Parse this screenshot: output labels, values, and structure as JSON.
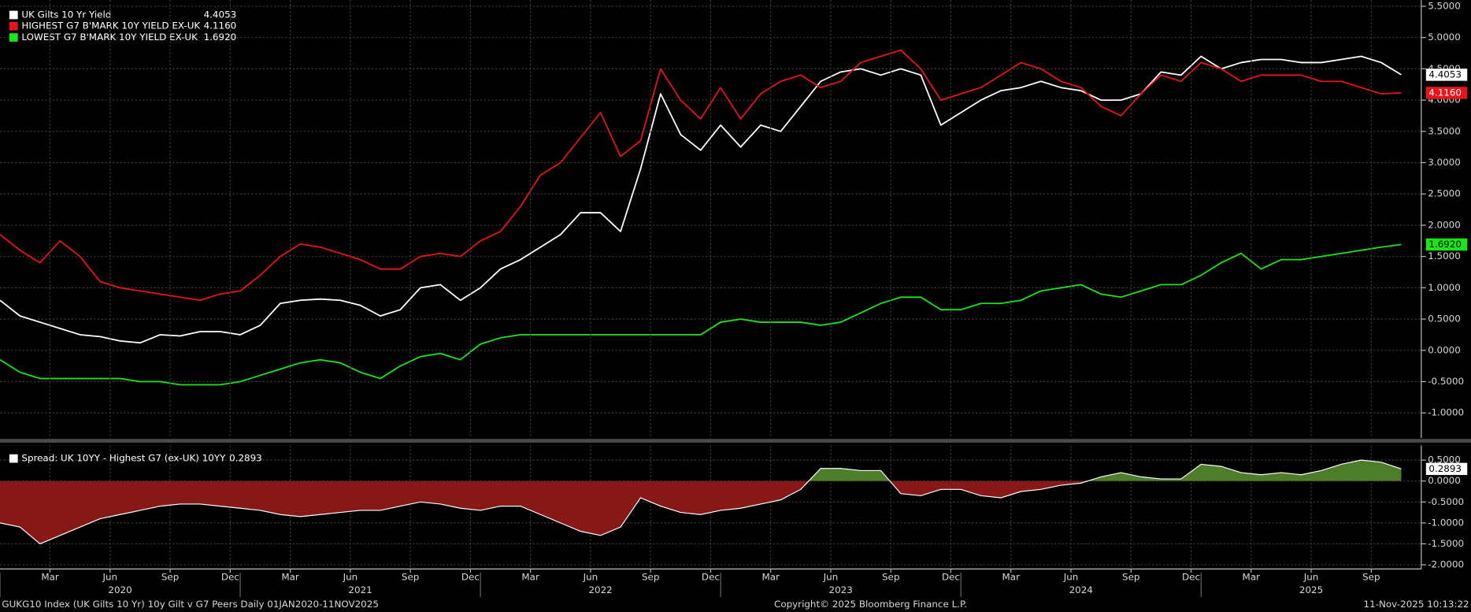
{
  "chart_data": [
    {
      "type": "line",
      "x": [
        "2020-01",
        "2020-02",
        "2020-03",
        "2020-04",
        "2020-05",
        "2020-06",
        "2020-07",
        "2020-08",
        "2020-09",
        "2020-10",
        "2020-11",
        "2020-12",
        "2021-01",
        "2021-02",
        "2021-03",
        "2021-04",
        "2021-05",
        "2021-06",
        "2021-07",
        "2021-08",
        "2021-09",
        "2021-10",
        "2021-11",
        "2021-12",
        "2022-01",
        "2022-02",
        "2022-03",
        "2022-04",
        "2022-05",
        "2022-06",
        "2022-07",
        "2022-08",
        "2022-09",
        "2022-10",
        "2022-11",
        "2022-12",
        "2023-01",
        "2023-02",
        "2023-03",
        "2023-04",
        "2023-05",
        "2023-06",
        "2023-07",
        "2023-08",
        "2023-09",
        "2023-10",
        "2023-11",
        "2023-12",
        "2024-01",
        "2024-02",
        "2024-03",
        "2024-04",
        "2024-05",
        "2024-06",
        "2024-07",
        "2024-08",
        "2024-09",
        "2024-10",
        "2024-11",
        "2024-12",
        "2025-01",
        "2025-02",
        "2025-03",
        "2025-04",
        "2025-05",
        "2025-06",
        "2025-07",
        "2025-08",
        "2025-09",
        "2025-10",
        "2025-11"
      ],
      "xlim": [
        "2020-01",
        "2025-12"
      ],
      "ylim": [
        -1.4,
        5.6
      ],
      "yticks": [
        {
          "value": 5.5,
          "label": "5.5000"
        },
        {
          "value": 5,
          "label": "5.0000"
        },
        {
          "value": 4.5,
          "label": "4.5000"
        },
        {
          "value": 4,
          "label": "4.0000"
        },
        {
          "value": 3.5,
          "label": "3.5000"
        },
        {
          "value": 3,
          "label": "3.0000"
        },
        {
          "value": 2.5,
          "label": "2.5000"
        },
        {
          "value": 2,
          "label": "2.0000"
        },
        {
          "value": 1.5,
          "label": "1.5000"
        },
        {
          "value": 1,
          "label": "1.0000"
        },
        {
          "value": 0.5,
          "label": "0.5000"
        },
        {
          "value": 0,
          "label": "0.0000"
        },
        {
          "value": -0.5,
          "label": "-0.5000"
        },
        {
          "value": -1,
          "label": "-1.0000"
        }
      ],
      "grid": true,
      "series": [
        {
          "name": "UK Gilts 10 Yr Yield",
          "color": "#ffffff",
          "label_text_color": "#000000",
          "values": [
            0.8,
            0.55,
            0.45,
            0.35,
            0.25,
            0.22,
            0.15,
            0.12,
            0.25,
            0.23,
            0.3,
            0.3,
            0.25,
            0.4,
            0.75,
            0.8,
            0.82,
            0.8,
            0.72,
            0.55,
            0.65,
            1.0,
            1.05,
            0.8,
            1.0,
            1.3,
            1.45,
            1.65,
            1.85,
            2.2,
            2.2,
            1.9,
            2.9,
            4.1,
            3.45,
            3.2,
            3.6,
            3.25,
            3.6,
            3.5,
            3.9,
            4.3,
            4.45,
            4.5,
            4.4,
            4.5,
            4.4,
            3.6,
            3.8,
            4.0,
            4.15,
            4.2,
            4.3,
            4.2,
            4.15,
            4.0,
            4.0,
            4.1,
            4.45,
            4.4,
            4.7,
            4.5,
            4.6,
            4.65,
            4.65,
            4.6,
            4.6,
            4.65,
            4.7,
            4.6,
            4.4053
          ]
        },
        {
          "name": "HIGHEST G7 B'MARK 10Y YIELD EX-UK",
          "color": "#e8141b",
          "label_text_color": "#ffffff",
          "values": [
            1.85,
            1.6,
            1.4,
            1.75,
            1.5,
            1.1,
            1.0,
            0.95,
            0.9,
            0.85,
            0.8,
            0.9,
            0.95,
            1.2,
            1.5,
            1.7,
            1.65,
            1.55,
            1.45,
            1.3,
            1.3,
            1.5,
            1.55,
            1.5,
            1.75,
            1.9,
            2.3,
            2.8,
            3.0,
            3.4,
            3.8,
            3.1,
            3.35,
            4.5,
            4.0,
            3.7,
            4.2,
            3.7,
            4.1,
            4.3,
            4.4,
            4.2,
            4.3,
            4.6,
            4.7,
            4.8,
            4.5,
            4.0,
            4.1,
            4.2,
            4.4,
            4.6,
            4.5,
            4.3,
            4.2,
            3.9,
            3.75,
            4.1,
            4.4,
            4.3,
            4.6,
            4.5,
            4.3,
            4.4,
            4.4,
            4.4,
            4.3,
            4.3,
            4.2,
            4.1,
            4.116
          ],
          "value_labels": [
            null,
            null,
            null,
            null,
            null,
            null,
            null,
            null,
            null,
            null,
            null,
            null,
            null,
            null,
            null,
            null,
            null,
            null,
            null,
            null,
            null,
            null,
            null,
            null,
            null,
            null,
            null,
            null,
            null,
            null,
            null,
            null,
            null,
            null,
            null,
            null,
            null,
            null,
            null,
            null,
            null,
            null,
            null,
            null,
            null,
            null,
            null,
            null,
            null,
            null,
            null,
            null,
            null,
            null,
            null,
            null,
            null,
            null,
            null,
            null,
            null,
            null,
            null,
            null,
            null,
            null,
            null,
            null,
            null,
            null,
            "4.1160"
          ]
        },
        {
          "name": "LOWEST G7 B'MARK 10Y YIELD EX-UK",
          "color": "#19e619",
          "label_text_color": "#000000",
          "values": [
            -0.15,
            -0.35,
            -0.45,
            -0.45,
            -0.45,
            -0.45,
            -0.45,
            -0.5,
            -0.5,
            -0.55,
            -0.55,
            -0.55,
            -0.5,
            -0.4,
            -0.3,
            -0.2,
            -0.15,
            -0.2,
            -0.35,
            -0.45,
            -0.25,
            -0.1,
            -0.05,
            -0.15,
            0.1,
            0.2,
            0.25,
            0.25,
            0.25,
            0.25,
            0.25,
            0.25,
            0.25,
            0.25,
            0.25,
            0.25,
            0.45,
            0.5,
            0.45,
            0.45,
            0.45,
            0.4,
            0.45,
            0.6,
            0.75,
            0.85,
            0.85,
            0.65,
            0.65,
            0.75,
            0.75,
            0.8,
            0.95,
            1.0,
            1.05,
            0.9,
            0.85,
            0.95,
            1.05,
            1.05,
            1.2,
            1.4,
            1.55,
            1.3,
            1.45,
            1.45,
            1.5,
            1.55,
            1.6,
            1.65,
            1.692
          ],
          "value_labels": [
            null,
            null,
            null,
            null,
            null,
            null,
            null,
            null,
            null,
            null,
            null,
            null,
            null,
            null,
            null,
            null,
            null,
            null,
            null,
            null,
            null,
            null,
            null,
            null,
            null,
            null,
            null,
            null,
            null,
            null,
            null,
            null,
            null,
            null,
            null,
            null,
            null,
            null,
            null,
            null,
            null,
            null,
            null,
            null,
            null,
            null,
            null,
            null,
            null,
            null,
            null,
            null,
            null,
            null,
            null,
            null,
            null,
            null,
            null,
            null,
            null,
            null,
            null,
            null,
            null,
            null,
            null,
            null,
            null,
            null,
            "1.6920"
          ]
        }
      ]
    },
    {
      "type": "area",
      "x": [
        "2020-01",
        "2020-02",
        "2020-03",
        "2020-04",
        "2020-05",
        "2020-06",
        "2020-07",
        "2020-08",
        "2020-09",
        "2020-10",
        "2020-11",
        "2020-12",
        "2021-01",
        "2021-02",
        "2021-03",
        "2021-04",
        "2021-05",
        "2021-06",
        "2021-07",
        "2021-08",
        "2021-09",
        "2021-10",
        "2021-11",
        "2021-12",
        "2022-01",
        "2022-02",
        "2022-03",
        "2022-04",
        "2022-05",
        "2022-06",
        "2022-07",
        "2022-08",
        "2022-09",
        "2022-10",
        "2022-11",
        "2022-12",
        "2023-01",
        "2023-02",
        "2023-03",
        "2023-04",
        "2023-05",
        "2023-06",
        "2023-07",
        "2023-08",
        "2023-09",
        "2023-10",
        "2023-11",
        "2023-12",
        "2024-01",
        "2024-02",
        "2024-03",
        "2024-04",
        "2024-05",
        "2024-06",
        "2024-07",
        "2024-08",
        "2024-09",
        "2024-10",
        "2024-11",
        "2024-12",
        "2025-01",
        "2025-02",
        "2025-03",
        "2025-04",
        "2025-05",
        "2025-06",
        "2025-07",
        "2025-08",
        "2025-09",
        "2025-10",
        "2025-11"
      ],
      "xlim": [
        "2020-01",
        "2025-12"
      ],
      "xticks": [
        {
          "value": "2020-03",
          "label": "Mar"
        },
        {
          "value": "2020-06",
          "label": "Jun"
        },
        {
          "value": "2020-09",
          "label": "Sep"
        },
        {
          "value": "2020-12",
          "label": "Dec"
        },
        {
          "value": "2021-03",
          "label": "Mar"
        },
        {
          "value": "2021-06",
          "label": "Jun"
        },
        {
          "value": "2021-09",
          "label": "Sep"
        },
        {
          "value": "2021-12",
          "label": "Dec"
        },
        {
          "value": "2022-03",
          "label": "Mar"
        },
        {
          "value": "2022-06",
          "label": "Jun"
        },
        {
          "value": "2022-09",
          "label": "Sep"
        },
        {
          "value": "2022-12",
          "label": "Dec"
        },
        {
          "value": "2023-03",
          "label": "Mar"
        },
        {
          "value": "2023-06",
          "label": "Jun"
        },
        {
          "value": "2023-09",
          "label": "Sep"
        },
        {
          "value": "2023-12",
          "label": "Dec"
        },
        {
          "value": "2024-03",
          "label": "Mar"
        },
        {
          "value": "2024-06",
          "label": "Jun"
        },
        {
          "value": "2024-09",
          "label": "Sep"
        },
        {
          "value": "2024-12",
          "label": "Dec"
        },
        {
          "value": "2025-03",
          "label": "Mar"
        },
        {
          "value": "2025-06",
          "label": "Jun"
        },
        {
          "value": "2025-09",
          "label": "Sep"
        }
      ],
      "year_labels": [
        "2020",
        "2021",
        "2022",
        "2023",
        "2024",
        "2025"
      ],
      "ylim": [
        -2.1,
        0.85
      ],
      "yticks": [
        {
          "value": 0.5,
          "label": "0.5000"
        },
        {
          "value": 0,
          "label": "0.0000"
        },
        {
          "value": -0.5,
          "label": "-0.5000"
        },
        {
          "value": -1,
          "label": "-1.0000"
        },
        {
          "value": -1.5,
          "label": "-1.5000"
        },
        {
          "value": -2,
          "label": "-2.0000"
        }
      ],
      "grid": true,
      "positive_color": "#4d7d28",
      "negative_color": "#861818",
      "series": [
        {
          "name": "Spread: UK 10YY - Highest G7 (ex-UK) 10YY",
          "color": "#ffffff",
          "label_text_color": "#000000",
          "values": [
            -1.0,
            -1.1,
            -1.5,
            -1.3,
            -1.1,
            -0.9,
            -0.8,
            -0.7,
            -0.6,
            -0.55,
            -0.55,
            -0.6,
            -0.65,
            -0.7,
            -0.8,
            -0.85,
            -0.8,
            -0.75,
            -0.7,
            -0.7,
            -0.6,
            -0.5,
            -0.55,
            -0.65,
            -0.7,
            -0.6,
            -0.6,
            -0.8,
            -1.0,
            -1.2,
            -1.3,
            -1.1,
            -0.4,
            -0.6,
            -0.75,
            -0.8,
            -0.7,
            -0.65,
            -0.55,
            -0.45,
            -0.2,
            0.3,
            0.3,
            0.25,
            0.25,
            -0.3,
            -0.35,
            -0.2,
            -0.2,
            -0.35,
            -0.4,
            -0.25,
            -0.2,
            -0.1,
            -0.05,
            0.1,
            0.2,
            0.1,
            0.05,
            0.05,
            0.4,
            0.35,
            0.2,
            0.15,
            0.2,
            0.15,
            0.25,
            0.4,
            0.5,
            0.45,
            0.2893
          ]
        }
      ]
    }
  ],
  "footer": {
    "left": "GUKG10 Index (UK Gilts 10 Yr) 10y Gilt v G7 Peers Daily 01JAN2020-11NOV2025",
    "center": "Copyright© 2025 Bloomberg Finance L.P.",
    "right": "11-Nov-2025 10:13:22"
  }
}
